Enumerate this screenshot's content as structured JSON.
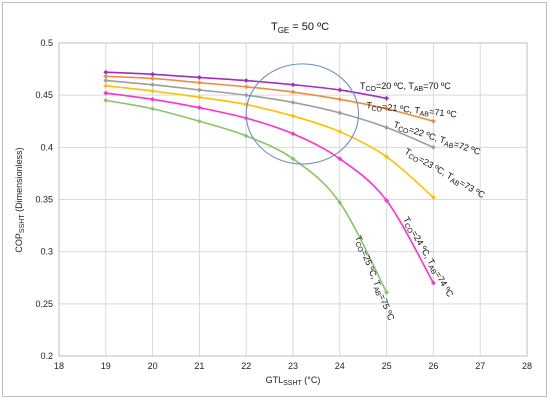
{
  "chart_data": {
    "type": "line",
    "title": "T_GE = 50 ºC",
    "title_parts": {
      "main": "T",
      "sub": "GE",
      "rest": " = 50 ºC"
    },
    "xlabel": "GTL_SSHT (°C)",
    "xlabel_parts": {
      "main": "GTL",
      "sub": "SSHT",
      "rest": " (°C)"
    },
    "ylabel": "COP_SSHT (Dimensionless)",
    "ylabel_parts": {
      "main": "COP",
      "sub": "SSHT",
      "rest": " (Dimensionless)"
    },
    "xlim": [
      18,
      28
    ],
    "ylim": [
      0.2,
      0.5
    ],
    "x_ticks": [
      "18",
      "19",
      "20",
      "21",
      "22",
      "23",
      "24",
      "25",
      "26",
      "27",
      "28"
    ],
    "y_ticks": [
      "0.2",
      "0.25",
      "0.3",
      "0.35",
      "0.4",
      "0.45",
      "0.5"
    ],
    "grid": true,
    "series": [
      {
        "name": "T_CO=20 ºC, T_AB=70 ºC",
        "color": "#9b30c8",
        "x": [
          19,
          20,
          21,
          22,
          23,
          24,
          25
        ],
        "y": [
          0.472,
          0.47,
          0.467,
          0.464,
          0.46,
          0.455,
          0.447
        ],
        "label": {
          "t1": "T",
          "s1": "CO",
          "m1": "=20 ºC, T",
          "s2": "AB",
          "m2": "=70 ºC"
        }
      },
      {
        "name": "T_CO=21 ºC, T_AB=71 ºC",
        "color": "#f28c3c",
        "x": [
          19,
          20,
          21,
          22,
          23,
          24,
          25,
          26
        ],
        "y": [
          0.468,
          0.466,
          0.462,
          0.458,
          0.453,
          0.446,
          0.437,
          0.425
        ],
        "label": {
          "t1": "T",
          "s1": "CO",
          "m1": "=21 ºC, T",
          "s2": "AB",
          "m2": "=71 ºC"
        }
      },
      {
        "name": "T_CO=22 ºC, T_AB=72 ºC",
        "color": "#9e9e9e",
        "x": [
          19,
          20,
          21,
          22,
          23,
          24,
          25,
          26
        ],
        "y": [
          0.464,
          0.46,
          0.455,
          0.45,
          0.443,
          0.433,
          0.419,
          0.4
        ],
        "label": {
          "t1": "T",
          "s1": "CO",
          "m1": "=22 ºC, T",
          "s2": "AB",
          "m2": "=72 ºC"
        }
      },
      {
        "name": "T_CO=23 ºC, T_AB=73 ºC",
        "color": "#ffc000",
        "x": [
          19,
          20,
          21,
          22,
          23,
          24,
          25,
          26
        ],
        "y": [
          0.459,
          0.454,
          0.448,
          0.441,
          0.43,
          0.415,
          0.391,
          0.352
        ],
        "label": {
          "t1": "T",
          "s1": "CO",
          "m1": "=23 ºC, T",
          "s2": "AB",
          "m2": "=73 ºC"
        }
      },
      {
        "name": "T_CO=24 ºC, T_AB=74 ºC",
        "color": "#ff33cc",
        "x": [
          19,
          20,
          21,
          22,
          23,
          24,
          25,
          26
        ],
        "y": [
          0.452,
          0.446,
          0.438,
          0.428,
          0.413,
          0.389,
          0.349,
          0.27
        ],
        "label": {
          "t1": "T",
          "s1": "CO",
          "m1": "=24 ºC, T",
          "s2": "AB",
          "m2": "=74 ºC"
        }
      },
      {
        "name": "T_CO=25 ºC, T_AB=75 ºC",
        "color": "#8cc46a",
        "x": [
          19,
          20,
          21,
          22,
          23,
          24,
          25
        ],
        "y": [
          0.445,
          0.437,
          0.425,
          0.411,
          0.389,
          0.347,
          0.261
        ],
        "label": {
          "t1": "T",
          "s1": "CO",
          "m1": "=25 ºC, T",
          "s2": "AB",
          "m2": "=75 ºC"
        }
      }
    ],
    "annotations": [
      {
        "type": "ellipse",
        "cx": 23.2,
        "cy": 0.432,
        "rx": 1.2,
        "ry": 0.048,
        "color": "#6d8fc8"
      }
    ]
  }
}
